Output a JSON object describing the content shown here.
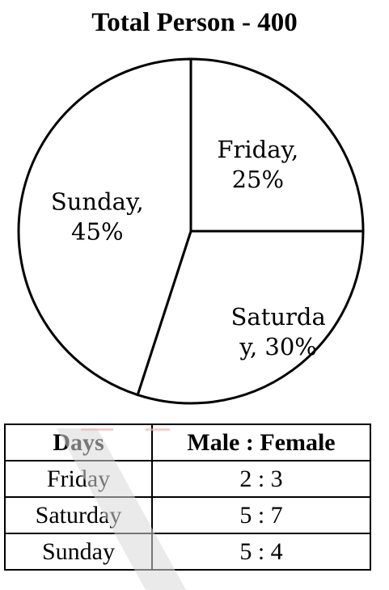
{
  "chart_data": {
    "type": "pie",
    "title": "Total Person - 400",
    "slices": [
      {
        "label_lines": [
          "Friday,",
          "25%"
        ],
        "category": "Friday",
        "value": 25
      },
      {
        "label_lines": [
          "Saturda",
          "y, 30%"
        ],
        "category": "Saturday",
        "value": 30
      },
      {
        "label_lines": [
          "Sunday,",
          "45%"
        ],
        "category": "Sunday",
        "value": 45
      }
    ],
    "colors": {
      "fill": "#ffffff",
      "stroke": "#000000"
    }
  },
  "table": {
    "headers": [
      "Days",
      "Male : Female"
    ],
    "rows": [
      [
        "Friday",
        "2 : 3"
      ],
      [
        "Saturday",
        "5 : 7"
      ],
      [
        "Sunday",
        "5 : 4"
      ]
    ]
  }
}
